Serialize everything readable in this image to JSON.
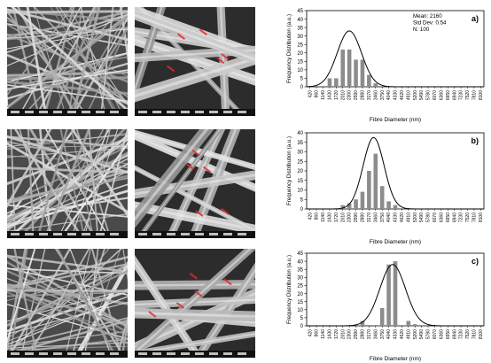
{
  "sem_images": {
    "label": "SEM micrograph of electrospun fibres",
    "rows": [
      {
        "low_mag": "sem-row1-low-mag",
        "high_mag": "sem-row1-high-mag"
      },
      {
        "low_mag": "sem-row2-low-mag",
        "high_mag": "sem-row2-high-mag"
      },
      {
        "low_mag": "sem-row3-low-mag",
        "high_mag": "sem-row3-high-mag"
      }
    ],
    "measure_color": "#e8282a"
  },
  "chart_data": [
    {
      "type": "bar",
      "panel_label": "a)",
      "ylabel": "Frequency Distribution (a.u.)",
      "xlabel": "Fibre Diameter (nm)",
      "ylim": [
        0,
        45
      ],
      "yticks": [
        0,
        5,
        10,
        15,
        20,
        25,
        30,
        35,
        40,
        45
      ],
      "categories": [
        "420",
        "860",
        "1140",
        "1430",
        "1720",
        "2010",
        "2300",
        "2590",
        "2880",
        "3170",
        "3460",
        "3750",
        "4040",
        "4330",
        "4620",
        "4910",
        "5200",
        "5490",
        "5780",
        "6070",
        "6360",
        "6650",
        "6940",
        "7230",
        "7520",
        "7810",
        "8100"
      ],
      "values": [
        0,
        0,
        0,
        5,
        5,
        22,
        22,
        16,
        16,
        7,
        2,
        0,
        0,
        0,
        0,
        0,
        0,
        0,
        0,
        0,
        0,
        0,
        0,
        0,
        0,
        0,
        0
      ],
      "fit_curve": {
        "mean_index": 6.0,
        "sd_index": 1.85,
        "peak": 33
      },
      "stats": [
        "Mean: 2160",
        "Std Dev: 0.54",
        "N: 100"
      ],
      "bar_color": "#8c8c8c",
      "curve_color": "#000000"
    },
    {
      "type": "bar",
      "panel_label": "b)",
      "ylabel": "Frequency Distribution (a.u.)",
      "xlabel": "Fibre Diameter (nm)",
      "ylim": [
        0,
        40
      ],
      "yticks": [
        0,
        5,
        10,
        15,
        20,
        25,
        30,
        35,
        40
      ],
      "categories": [
        "420",
        "860",
        "1140",
        "1430",
        "1720",
        "2010",
        "2300",
        "2590",
        "2880",
        "3170",
        "3460",
        "3750",
        "4040",
        "4330",
        "4620",
        "4910",
        "5200",
        "5490",
        "5780",
        "6070",
        "6360",
        "6650",
        "6940",
        "7230",
        "7520",
        "7810",
        "8100"
      ],
      "values": [
        0,
        0,
        0,
        0,
        0,
        2,
        3,
        5,
        9,
        20,
        29,
        12,
        4,
        2,
        0,
        0,
        0,
        0,
        0,
        0,
        0,
        0,
        0,
        0,
        0,
        0,
        0
      ],
      "fit_curve": {
        "mean_index": 9.7,
        "sd_index": 1.6,
        "peak": 37.5
      },
      "bar_color": "#8c8c8c",
      "curve_color": "#000000"
    },
    {
      "type": "bar",
      "panel_label": "c)",
      "ylabel": "Frequency Distribution (a.u.)",
      "xlabel": "Fibre Diameter (nm)",
      "ylim": [
        0,
        45
      ],
      "yticks": [
        0,
        5,
        10,
        15,
        20,
        25,
        30,
        35,
        40,
        45
      ],
      "categories": [
        "420",
        "860",
        "1140",
        "1430",
        "1720",
        "2010",
        "2300",
        "2590",
        "2880",
        "3170",
        "3460",
        "3750",
        "4040",
        "4330",
        "4620",
        "4910",
        "5200",
        "5490",
        "5780",
        "6070",
        "6360",
        "6650",
        "6940",
        "7230",
        "7520",
        "7810",
        "8100"
      ],
      "values": [
        0,
        0,
        0,
        0,
        0,
        0,
        0,
        0,
        3,
        0,
        0,
        11,
        38,
        40,
        0,
        3,
        1,
        0,
        0,
        0,
        0,
        0,
        0,
        0,
        0,
        0,
        0
      ],
      "fit_curve": {
        "mean_index": 12.6,
        "sd_index": 1.95,
        "peak": 38
      },
      "bar_color": "#8c8c8c",
      "curve_color": "#000000"
    }
  ]
}
